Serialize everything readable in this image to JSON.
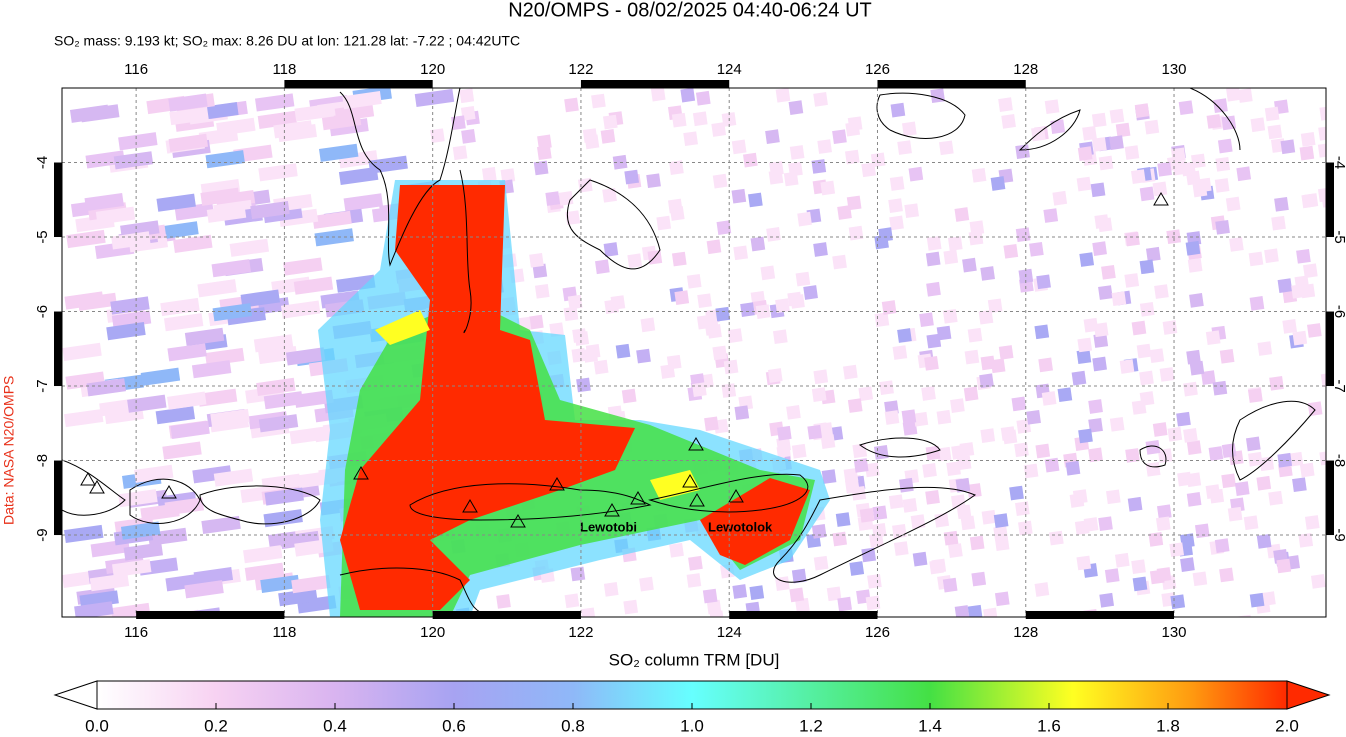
{
  "chart_data": {
    "type": "map",
    "title": "N20/OMPS - 08/02/2025 04:40-06:24 UT",
    "subtitle": "SO₂ mass: 9.193 kt; SO₂ max: 8.26 DU at lon: 121.28 lat: -7.22 ; 04:42UTC",
    "source": "Data: NASA N20/OMPS",
    "xlim": [
      115,
      132.05
    ],
    "ylim": [
      -10.1,
      -3
    ],
    "xticks": [
      116,
      118,
      120,
      122,
      124,
      126,
      128,
      130
    ],
    "yticks": [
      -4,
      -5,
      -6,
      -7,
      -8,
      -9
    ],
    "grid": true,
    "volcano_labels": [
      "Lewotobi",
      "Lewotolok"
    ],
    "colorbar": {
      "label": "SO₂ column TRM [DU]",
      "lim": [
        0,
        2
      ],
      "ticks": [
        {
          "value": 0,
          "label": "0.0"
        },
        {
          "value": 0.2,
          "label": "0.2"
        },
        {
          "value": 0.4,
          "label": "0.4"
        },
        {
          "value": 0.6,
          "label": "0.6"
        },
        {
          "value": 0.8,
          "label": "0.8"
        },
        {
          "value": 1,
          "label": "1.0"
        },
        {
          "value": 1.2,
          "label": "1.2"
        },
        {
          "value": 1.4,
          "label": "1.4"
        },
        {
          "value": 1.6,
          "label": "1.6"
        },
        {
          "value": 1.8,
          "label": "1.8"
        },
        {
          "value": 2,
          "label": "2.0"
        }
      ]
    }
  }
}
